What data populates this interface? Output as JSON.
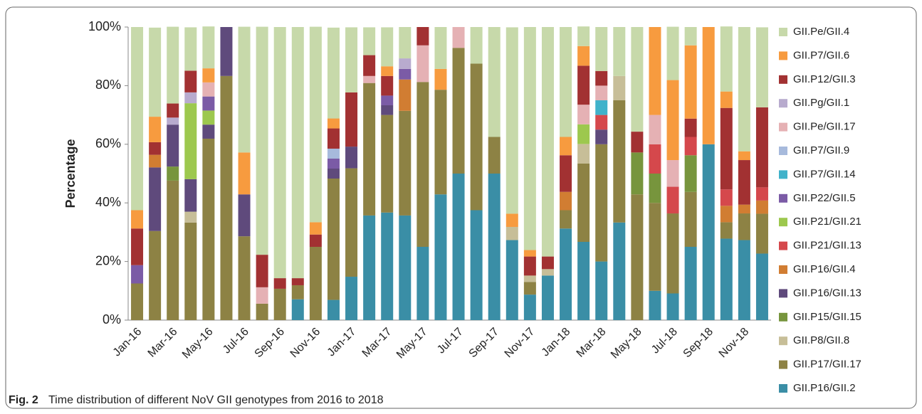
{
  "chart_data": {
    "type": "stacked_bar",
    "y_label": "Percentage",
    "caption_label": "Fig. 2",
    "caption": "Time distribution of different NoV GII genotypes from 2016 to 2018",
    "categories": [
      "Jan-16",
      null,
      "Mar-16",
      null,
      "May-16",
      null,
      "Jul-16",
      null,
      "Sep-16",
      null,
      "Nov-16",
      null,
      "Jan-17",
      null,
      "Mar-17",
      null,
      "May-17",
      null,
      "Jul-17",
      null,
      "Sep-17",
      null,
      "Nov-17",
      null,
      "Jan-18",
      null,
      "Mar-18",
      null,
      "May-18",
      null,
      "Jul-18",
      null,
      "Sep-18",
      null,
      "Nov-18",
      null
    ],
    "ylim": [
      0,
      100
    ],
    "yticks": [
      {
        "value": 0,
        "label": "0%"
      },
      {
        "value": 20,
        "label": "20%"
      },
      {
        "value": 40,
        "label": "40%"
      },
      {
        "value": 60,
        "label": "60%"
      },
      {
        "value": 80,
        "label": "80%"
      },
      {
        "value": 100,
        "label": "100%"
      }
    ],
    "grid": false,
    "legend": "right",
    "series": [
      {
        "name": "GII.P16/GII.2",
        "color": "#3a8ea6",
        "values": [
          0,
          0,
          0,
          0,
          0,
          0,
          0,
          0,
          0,
          7.1,
          0,
          6.9,
          14.8,
          35.7,
          36.7,
          35.7,
          25,
          42.9,
          50,
          37.5,
          50,
          27.3,
          8.7,
          15.2,
          31.25,
          26.7,
          20,
          33.3,
          0,
          10,
          9.1,
          25,
          60,
          27.8,
          27.3,
          22.7
        ]
      },
      {
        "name": "GII.P17/GII.17",
        "color": "#8d8244",
        "values": [
          12.5,
          30.4,
          47.6,
          33.3,
          61.9,
          83.3,
          28.6,
          5.6,
          10.7,
          4.8,
          25,
          41.4,
          37,
          45.2,
          33.3,
          35.7,
          56.25,
          35.7,
          42.9,
          50,
          12.5,
          0,
          4.3,
          0,
          6.25,
          26.7,
          40,
          41.7,
          42.9,
          30,
          27.3,
          18.75,
          0,
          5.6,
          9.1,
          13.6
        ]
      },
      {
        "name": "GII.P8/GII.8",
        "color": "#c7be98",
        "values": [
          0,
          0,
          0,
          3.7,
          0,
          0,
          0,
          0,
          0,
          0,
          0,
          0,
          0,
          0,
          0,
          0,
          0,
          0,
          0,
          0,
          0,
          4.5,
          2.2,
          2.2,
          0,
          6.7,
          0,
          8.3,
          0,
          0,
          0,
          0,
          0,
          0,
          0,
          0
        ]
      },
      {
        "name": "GII.P15/GII.15",
        "color": "#77953d",
        "values": [
          0,
          0,
          4.8,
          0,
          0,
          0,
          0,
          0,
          0,
          0,
          0,
          0,
          0,
          0,
          0,
          0,
          0,
          0,
          0,
          0,
          0,
          0,
          0,
          0,
          0,
          0,
          0,
          0,
          14.3,
          10,
          0,
          12.5,
          0,
          0,
          0,
          0
        ]
      },
      {
        "name": "GII.P16/GII.13",
        "color": "#5f4a7c",
        "values": [
          0,
          21.7,
          14.3,
          11.1,
          4.8,
          16.7,
          14.3,
          0,
          0,
          0,
          0,
          3.4,
          7.4,
          0,
          3.3,
          0,
          0,
          0,
          0,
          0,
          0,
          0,
          0,
          0,
          0,
          0,
          5,
          0,
          0,
          0,
          0,
          0,
          0,
          0,
          0,
          0
        ]
      },
      {
        "name": "GII.P16/GII.4",
        "color": "#d17d32",
        "values": [
          0,
          4.3,
          0,
          0,
          0,
          0,
          0,
          0,
          0,
          0,
          0,
          0,
          0,
          0,
          0,
          10.7,
          0,
          0,
          0,
          0,
          0,
          0,
          0,
          0,
          6.25,
          0,
          0,
          0,
          0,
          0,
          0,
          0,
          0,
          5.6,
          3,
          4.5
        ]
      },
      {
        "name": "GII.P21/GII.13",
        "color": "#d5484c",
        "values": [
          0,
          0,
          0,
          0,
          0,
          0,
          0,
          0,
          0,
          0,
          0,
          0,
          0,
          0,
          0,
          0,
          0,
          0,
          0,
          0,
          0,
          0,
          0,
          0,
          0,
          0,
          5,
          0,
          0,
          10,
          9.1,
          6.25,
          0,
          5.6,
          0,
          4.5
        ]
      },
      {
        "name": "GII.P21/GII.21",
        "color": "#9dc84e",
        "values": [
          0,
          0,
          0,
          25.9,
          4.8,
          0,
          0,
          0,
          0,
          0,
          0,
          0,
          0,
          0,
          0,
          0,
          0,
          0,
          0,
          0,
          0,
          0,
          0,
          0,
          0,
          6.7,
          0,
          0,
          0,
          0,
          0,
          0,
          0,
          0,
          0,
          0
        ]
      },
      {
        "name": "GII.P22/GII.5",
        "color": "#7b5ba6",
        "values": [
          6.25,
          0,
          0,
          0,
          4.8,
          0,
          0,
          0,
          0,
          0,
          0,
          3.4,
          0,
          0,
          3.3,
          3.6,
          0,
          0,
          0,
          0,
          0,
          0,
          0,
          0,
          0,
          0,
          0,
          0,
          0,
          0,
          0,
          0,
          0,
          0,
          0,
          0
        ]
      },
      {
        "name": "GII.P7/GII.14",
        "color": "#40b2ca",
        "values": [
          0,
          0,
          0,
          0,
          0,
          0,
          0,
          0,
          0,
          0,
          0,
          0,
          0,
          0,
          0,
          0,
          0,
          0,
          0,
          0,
          0,
          0,
          0,
          0,
          0,
          0,
          5,
          0,
          0,
          0,
          0,
          0,
          0,
          0,
          0,
          0
        ]
      },
      {
        "name": "GII.P7/GII.9",
        "color": "#a7badc",
        "values": [
          0,
          0,
          0,
          0,
          0,
          0,
          0,
          0,
          0,
          0,
          0,
          3.4,
          0,
          0,
          0,
          0,
          0,
          0,
          0,
          0,
          0,
          0,
          0,
          0,
          0,
          0,
          0,
          0,
          0,
          0,
          0,
          0,
          0,
          0,
          0,
          0
        ]
      },
      {
        "name": "GII.Pe/GII.17",
        "color": "#e5b1b4",
        "values": [
          0,
          0,
          0,
          0,
          4.8,
          0,
          0,
          5.6,
          0,
          0,
          0,
          0,
          0,
          2.4,
          0,
          0,
          12.5,
          0,
          7.1,
          0,
          0,
          0,
          0,
          0,
          0,
          6.7,
          5,
          0,
          0,
          10,
          9.1,
          0,
          0,
          0,
          0,
          0
        ]
      },
      {
        "name": "GII.Pg/GII.1",
        "color": "#b8abce",
        "values": [
          0,
          0,
          2.4,
          3.7,
          0,
          0,
          0,
          0,
          0,
          0,
          0,
          0,
          0,
          0,
          0,
          3.6,
          0,
          0,
          0,
          0,
          0,
          0,
          0,
          0,
          0,
          0,
          0,
          0,
          0,
          0,
          0,
          0,
          0,
          0,
          0,
          0
        ]
      },
      {
        "name": "GII.P12/GII.3",
        "color": "#a23132",
        "values": [
          12.5,
          4.3,
          4.8,
          7.4,
          0,
          0,
          0,
          11.1,
          3.6,
          2.4,
          4.2,
          6.9,
          18.5,
          7.1,
          6.7,
          0,
          6.25,
          0,
          0,
          0,
          0,
          0,
          6.5,
          4.3,
          12.5,
          13.3,
          5,
          0,
          7.1,
          0,
          0,
          6.25,
          0,
          27.8,
          15.2,
          27.3
        ]
      },
      {
        "name": "GII.P7/GII.6",
        "color": "#f79b3f",
        "values": [
          6.25,
          8.7,
          0,
          0,
          4.8,
          0,
          14.3,
          0,
          0,
          0,
          4.2,
          3.4,
          0,
          0,
          3.3,
          0,
          0,
          7.1,
          0,
          0,
          0,
          4.5,
          2.2,
          0,
          6.25,
          6.7,
          0,
          0,
          0,
          30,
          27.3,
          25,
          40,
          5.6,
          3,
          0
        ]
      },
      {
        "name": "GII.Pe/GII.4",
        "color": "#c7d9aa",
        "values": [
          62.5,
          30.4,
          26.2,
          14.8,
          14.3,
          0,
          42.9,
          77.8,
          85.7,
          85.7,
          66.7,
          31,
          22.2,
          9.5,
          13.3,
          10.7,
          0,
          14.3,
          0,
          12.5,
          37.5,
          63.6,
          76.1,
          78.3,
          37.5,
          6.7,
          15,
          16.7,
          35.7,
          0,
          18.2,
          6.25,
          0,
          22.2,
          42.4,
          27.3
        ]
      }
    ]
  }
}
